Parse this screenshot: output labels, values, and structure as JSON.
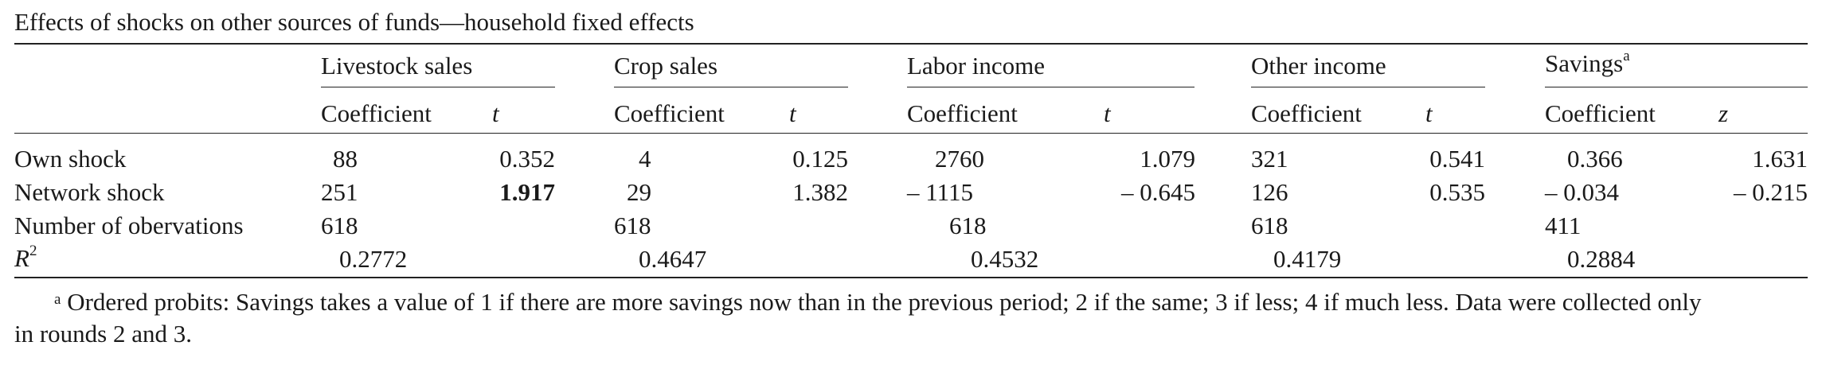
{
  "table": {
    "title": "Effects of shocks on other sources of funds—household fixed effects",
    "groups": [
      {
        "label": "Livestock sales",
        "sup": ""
      },
      {
        "label": "Crop sales",
        "sup": ""
      },
      {
        "label": "Labor income",
        "sup": ""
      },
      {
        "label": "Other income",
        "sup": ""
      },
      {
        "label": "Savings",
        "sup": "a"
      }
    ],
    "subheaders": [
      {
        "coef": "Coefficient",
        "stat": "t"
      },
      {
        "coef": "Coefficient",
        "stat": "t"
      },
      {
        "coef": "Coefficient",
        "stat": "t"
      },
      {
        "coef": "Coefficient",
        "stat": "t"
      },
      {
        "coef": "Coefficient",
        "stat": "z"
      }
    ],
    "rows": [
      {
        "label": "Own shock",
        "cells": [
          [
            "88",
            "0.352"
          ],
          [
            "4",
            "0.125"
          ],
          [
            "2760",
            "1.079"
          ],
          [
            "321",
            "0.541"
          ],
          [
            "0.366",
            "1.631"
          ]
        ]
      },
      {
        "label": "Network shock",
        "cells": [
          [
            "251",
            "1.917"
          ],
          [
            "29",
            "1.382"
          ],
          [
            "– 1115",
            "– 0.645"
          ],
          [
            "126",
            "0.535"
          ],
          [
            "– 0.034",
            "– 0.215"
          ]
        ]
      }
    ],
    "observations": {
      "label": "Number of obervations",
      "values": [
        "618",
        "618",
        "618",
        "618",
        "411"
      ]
    },
    "r2": {
      "label": "R",
      "label_sup": "2",
      "values": [
        "0.2772",
        "0.4647",
        "0.4532",
        "0.4179",
        "0.2884"
      ]
    },
    "footnote": {
      "mark": "a",
      "line1": "Ordered probits: Savings takes a value of 1 if there are more savings now than in the previous period; 2 if the same; 3 if less; 4 if much less. Data were collected only",
      "line2": "in rounds 2 and 3."
    }
  }
}
